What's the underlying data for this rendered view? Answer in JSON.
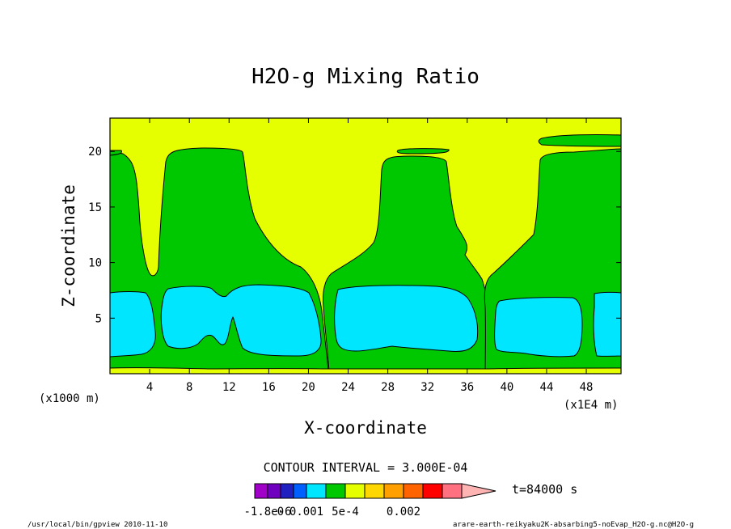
{
  "chart_data": {
    "type": "heatmap",
    "title": "H2O-g Mixing Ratio",
    "xlabel": "X-coordinate",
    "ylabel": "Z-coordinate",
    "x_unit": "(x1E4 m)",
    "y_unit": "(x1000 m)",
    "xlim": [
      0,
      51.5
    ],
    "ylim": [
      0,
      23
    ],
    "x_ticks": [
      4,
      8,
      12,
      16,
      20,
      24,
      28,
      32,
      36,
      40,
      44,
      48
    ],
    "y_ticks": [
      5,
      10,
      15,
      20
    ],
    "grid": false,
    "contour_interval_label": "CONTOUR INTERVAL = 3.000E-04",
    "time_label": "t=84000 s",
    "colorbar": {
      "colors": [
        "#a000c8",
        "#7000c0",
        "#2020c0",
        "#0060ff",
        "#00e6ff",
        "#00c800",
        "#e6ff00",
        "#ffd700",
        "#ffa000",
        "#ff6400",
        "#ff0000",
        "#ff7080",
        "#ffb4b4"
      ],
      "tick_labels": [
        {
          "text": "-1.8e-6",
          "index": 1
        },
        {
          "text": "0",
          "index": 2
        },
        {
          "text": "0.001",
          "index": 4
        },
        {
          "text": "5e-4",
          "index": 6
        },
        {
          "text": "0.002",
          "index": 9
        }
      ]
    },
    "regions": [
      {
        "level": "yellow",
        "color": "#e6ff00",
        "fill_whole_plot": true
      },
      {
        "level": "green",
        "color": "#00c800",
        "note": "columns",
        "columns": [
          {
            "x": [
              0,
              4.5
            ],
            "z": [
              0,
              20
            ]
          },
          {
            "x": [
              5,
              21
            ],
            "z": [
              0,
              20.2
            ]
          },
          {
            "x": [
              21.5,
              37
            ],
            "z": [
              0,
              19.5
            ]
          },
          {
            "x": [
              37.5,
              51.5
            ],
            "z": [
              0,
              21.5
            ]
          }
        ]
      },
      {
        "level": "cyan",
        "color": "#00e6ff",
        "blobs": [
          {
            "x": [
              0,
              4.5
            ],
            "z": [
              1.5,
              7.5
            ]
          },
          {
            "x": [
              5.3,
              21
            ],
            "z": [
              2.3,
              8
            ]
          },
          {
            "x": [
              22,
              37
            ],
            "z": [
              2.2,
              8
            ]
          },
          {
            "x": [
              38.5,
              47
            ],
            "z": [
              1.8,
              6.8
            ]
          },
          {
            "x": [
              48,
              51.5
            ],
            "z": [
              1.8,
              7.4
            ]
          }
        ]
      }
    ]
  },
  "footer": {
    "left": "/usr/local/bin/gpview  2010-11-10",
    "right": "arare-earth-reikyaku2K-absarbing5-noEvap_H2O-g.nc@H2O-g"
  }
}
